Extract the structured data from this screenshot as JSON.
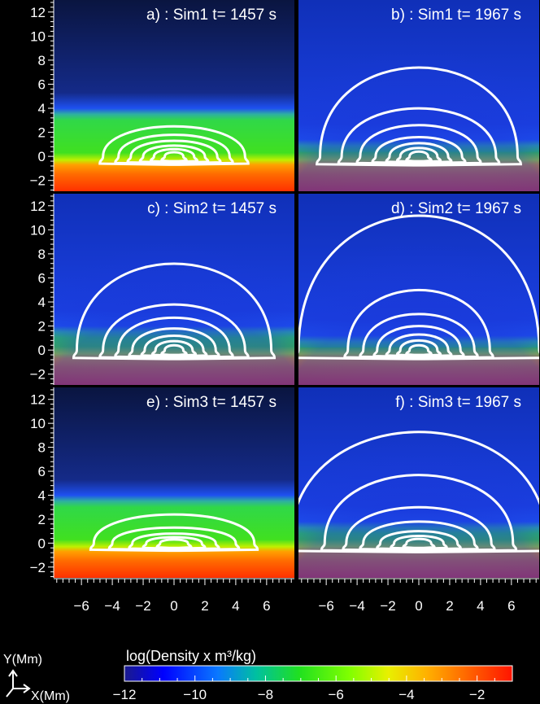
{
  "chart_data": {
    "type": "heatmap",
    "panels": [
      {
        "title": "a) : Sim1 t= 1457 s",
        "sim": "Sim1",
        "time_s": 1457,
        "contours": [
          [
            0.6,
            0.35
          ],
          [
            1.3,
            0.6
          ],
          [
            2.0,
            0.9
          ],
          [
            2.8,
            1.3
          ],
          [
            3.6,
            1.8
          ],
          [
            4.6,
            2.5
          ]
        ],
        "green_top": 3.8,
        "halo": 0
      },
      {
        "title": "b) : Sim1 t= 1967 s",
        "sim": "Sim1",
        "time_s": 1967,
        "contours": [
          [
            0.6,
            0.4
          ],
          [
            1.2,
            0.7
          ],
          [
            1.9,
            1.1
          ],
          [
            2.8,
            1.6
          ],
          [
            3.8,
            2.6
          ],
          [
            5.0,
            4.0
          ],
          [
            6.4,
            7.4
          ]
        ],
        "green_top": 1.2,
        "halo": 1
      },
      {
        "title": "c) : Sim2 t= 1457 s",
        "sim": "Sim2",
        "time_s": 1457,
        "contours": [
          [
            0.6,
            0.4
          ],
          [
            1.2,
            0.75
          ],
          [
            1.9,
            1.2
          ],
          [
            2.7,
            1.8
          ],
          [
            3.6,
            2.7
          ],
          [
            4.6,
            3.8
          ],
          [
            6.3,
            7.2
          ]
        ],
        "green_top": 1.8,
        "halo": 0.6
      },
      {
        "title": "d) : Sim2 t= 1967 s",
        "sim": "Sim2",
        "time_s": 1967,
        "contours": [
          [
            0.6,
            0.4
          ],
          [
            1.2,
            0.8
          ],
          [
            1.9,
            1.3
          ],
          [
            2.7,
            2.0
          ],
          [
            3.6,
            3.0
          ],
          [
            4.6,
            5.0
          ],
          [
            7.8,
            11.2
          ]
        ],
        "green_top": 1.0,
        "halo": 1
      },
      {
        "title": "e) : Sim3 t= 1457 s",
        "sim": "Sim3",
        "time_s": 1457,
        "contours": [
          [
            0.9,
            0.3
          ],
          [
            1.8,
            0.5
          ],
          [
            2.7,
            0.8
          ],
          [
            4.0,
            1.3
          ],
          [
            5.2,
            2.4
          ]
        ],
        "green_top": 3.8,
        "halo": 0
      },
      {
        "title": "f) : Sim3 t= 1967 s",
        "sim": "Sim3",
        "time_s": 1967,
        "contours": [
          [
            0.8,
            0.35
          ],
          [
            1.6,
            0.6
          ],
          [
            2.5,
            1.0
          ],
          [
            3.6,
            1.8
          ],
          [
            4.7,
            3.0
          ],
          [
            6.1,
            5.7
          ],
          [
            8.3,
            9.3
          ]
        ],
        "green_top": 1.6,
        "halo": 1
      }
    ],
    "x_axis": {
      "label": "X(Mm)",
      "range": [
        -7.8,
        7.8
      ],
      "ticks": [
        -6,
        -4,
        -2,
        0,
        2,
        4,
        6
      ]
    },
    "y_axis": {
      "label": "Y(Mm)",
      "range": [
        -2.9,
        13.0
      ],
      "ticks": [
        -2,
        0,
        2,
        4,
        6,
        8,
        10,
        12
      ]
    },
    "colorbar": {
      "title": "log(Density x m³/kg)",
      "range": [
        -12,
        -1
      ],
      "ticks": [
        -12,
        -10,
        -8,
        -6,
        -4,
        -2
      ],
      "colors": [
        "#1a1a8c",
        "#0000ff",
        "#0a78ff",
        "#00c0a0",
        "#20e020",
        "#80ff00",
        "#e8f000",
        "#ffb000",
        "#ff5a00",
        "#ff1400"
      ]
    },
    "grid": false,
    "legend": "none"
  }
}
